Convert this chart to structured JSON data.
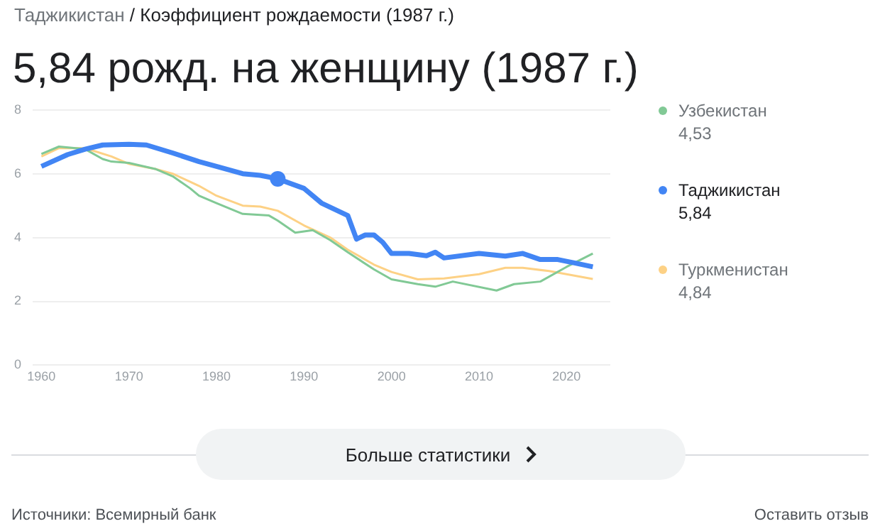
{
  "chart_data": {
    "type": "line",
    "subtitle": "Таджикистан / Коэффициент рождаемости (1987 г.)",
    "title": "5,84 рожд. на женщину (1987 г.)",
    "xlim": [
      1959,
      2025
    ],
    "xticks": [
      1960,
      1970,
      1980,
      1990,
      2000,
      2010,
      2020
    ],
    "ylim": [
      0,
      8
    ],
    "yticks": [
      0,
      2,
      4,
      6,
      8
    ],
    "grid": "y",
    "legend": "right",
    "series": [
      {
        "name": "Узбекистан",
        "color": "#81c995",
        "x": [
          1960,
          1962,
          1965,
          1967,
          1968,
          1970,
          1973,
          1975,
          1977,
          1978,
          1980,
          1983,
          1986,
          1987,
          1989,
          1991,
          1993,
          1995,
          1998,
          2000,
          2003,
          2005,
          2007,
          2012,
          2014,
          2017,
          2020,
          2023
        ],
        "values": [
          6.62,
          6.85,
          6.77,
          6.46,
          6.38,
          6.34,
          6.15,
          5.92,
          5.54,
          5.31,
          5.08,
          4.74,
          4.69,
          4.53,
          4.15,
          4.23,
          3.92,
          3.54,
          3.0,
          2.69,
          2.54,
          2.46,
          2.62,
          2.34,
          2.54,
          2.62,
          3.08,
          3.5
        ]
      },
      {
        "name": "Таджикистан",
        "color": "#4285f4",
        "x": [
          1960,
          1963,
          1965,
          1967,
          1970,
          1972,
          1975,
          1978,
          1980,
          1983,
          1985,
          1987,
          1990,
          1992,
          1995,
          1996,
          1997,
          1998,
          1999,
          2000,
          2002,
          2004,
          2005,
          2006,
          2010,
          2013,
          2015,
          2017,
          2019,
          2021,
          2023
        ],
        "values": [
          6.23,
          6.6,
          6.77,
          6.9,
          6.92,
          6.9,
          6.65,
          6.38,
          6.23,
          6.0,
          5.95,
          5.84,
          5.54,
          5.08,
          4.69,
          3.95,
          4.08,
          4.08,
          3.85,
          3.5,
          3.5,
          3.43,
          3.54,
          3.36,
          3.5,
          3.42,
          3.5,
          3.31,
          3.31,
          3.2,
          3.08
        ]
      },
      {
        "name": "Туркменистан",
        "color": "#fdd185",
        "x": [
          1960,
          1962,
          1965,
          1968,
          1970,
          1973,
          1975,
          1978,
          1980,
          1983,
          1985,
          1987,
          1990,
          1993,
          1995,
          1998,
          2000,
          2003,
          2006,
          2010,
          2013,
          2015,
          2018,
          2023
        ],
        "values": [
          6.54,
          6.8,
          6.8,
          6.54,
          6.31,
          6.15,
          6.0,
          5.62,
          5.31,
          5.0,
          4.97,
          4.84,
          4.38,
          4.0,
          3.62,
          3.15,
          2.92,
          2.69,
          2.72,
          2.85,
          3.05,
          3.05,
          2.95,
          2.7
        ]
      },
      {
        "type": "scatter",
        "color": "#4285f4",
        "x": [
          1987
        ],
        "values": [
          5.84
        ]
      }
    ],
    "annotations": [
      "4,53",
      "5,84",
      "4,84",
      "Больше статистики",
      "Источники: Всемирный банк",
      "Оставить отзыв"
    ]
  }
}
